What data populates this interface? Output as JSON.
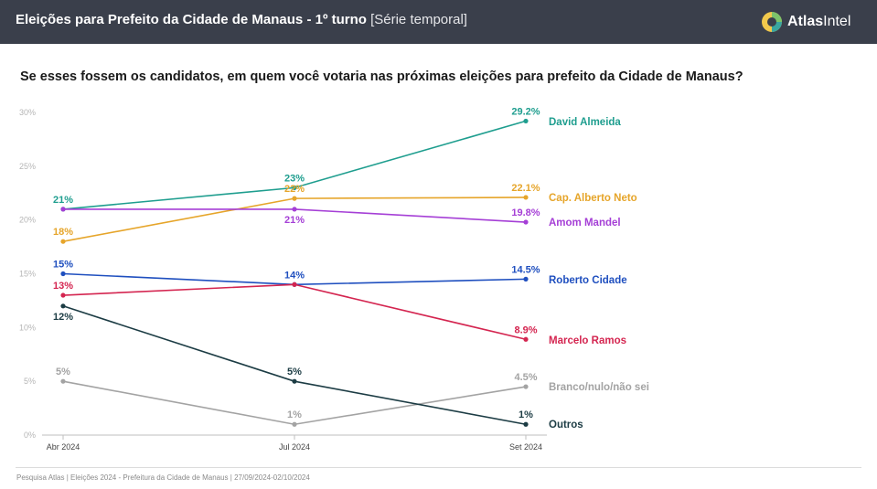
{
  "header": {
    "title_main": "Eleições para Prefeito da Cidade de Manaus - 1º turno",
    "title_sub": "[Série temporal]",
    "logo_icon": "atlas-intel-logo-icon",
    "logo_text_bold": "Atlas",
    "logo_text_rest": "Intel"
  },
  "question": "Se esses fossem os candidatos, em quem você votaria nas próximas eleições para prefeito da Cidade de Manaus?",
  "footer": "Pesquisa Atlas | Eleições 2024 - Prefeitura da Cidade de Manaus | 27/09/2024-02/10/2024",
  "chart_data": {
    "type": "line",
    "title": "Eleições para Prefeito da Cidade de Manaus - 1º turno [Série temporal]",
    "subtitle": "Se esses fossem os candidatos, em quem você votaria nas próximas eleições para prefeito da Cidade de Manaus?",
    "xlabel": "",
    "ylabel": "",
    "categories": [
      "Abr 2024",
      "Jul 2024",
      "Set 2024"
    ],
    "ylim": [
      0,
      30
    ],
    "yticks": [
      0,
      5,
      10,
      15,
      20,
      25,
      30
    ],
    "ytick_labels": [
      "0%",
      "5%",
      "10%",
      "15%",
      "20%",
      "25%",
      "30%"
    ],
    "grid": false,
    "legend": "right-end-labels",
    "series": [
      {
        "name": "David Almeida",
        "color": "#1f9e8f",
        "values": [
          21,
          23,
          29.2
        ],
        "labels": [
          "21%",
          "23%",
          "29.2%"
        ],
        "label_pos": [
          "above",
          "above",
          "above"
        ]
      },
      {
        "name": "Cap. Alberto Neto",
        "color": "#e6a52a",
        "values": [
          18,
          22,
          22.1
        ],
        "labels": [
          "18%",
          "22%",
          "22.1%"
        ],
        "label_pos": [
          "above",
          "above",
          "above"
        ]
      },
      {
        "name": "Amom Mandel",
        "color": "#a53fd6",
        "values": [
          21,
          21,
          19.8
        ],
        "labels": [
          "",
          "21%",
          "19.8%"
        ],
        "label_pos": [
          "none",
          "below",
          "above"
        ]
      },
      {
        "name": "Roberto Cidade",
        "color": "#1f4fbf",
        "values": [
          15,
          14,
          14.5
        ],
        "labels": [
          "15%",
          "14%",
          "14.5%"
        ],
        "label_pos": [
          "above",
          "above",
          "above"
        ]
      },
      {
        "name": "Marcelo Ramos",
        "color": "#d42550",
        "values": [
          13,
          14,
          8.9
        ],
        "labels": [
          "13%",
          "",
          "8.9%"
        ],
        "label_pos": [
          "above",
          "none",
          "above"
        ]
      },
      {
        "name": "Branco/nulo/não sei",
        "color": "#a3a3a3",
        "values": [
          5,
          1,
          4.5
        ],
        "labels": [
          "5%",
          "1%",
          "4.5%"
        ],
        "label_pos": [
          "above",
          "above",
          "above"
        ]
      },
      {
        "name": "Outros",
        "color": "#1c3c44",
        "values": [
          12,
          5,
          1
        ],
        "labels": [
          "12%",
          "5%",
          "1%"
        ],
        "label_pos": [
          "below",
          "above",
          "above"
        ]
      }
    ]
  }
}
